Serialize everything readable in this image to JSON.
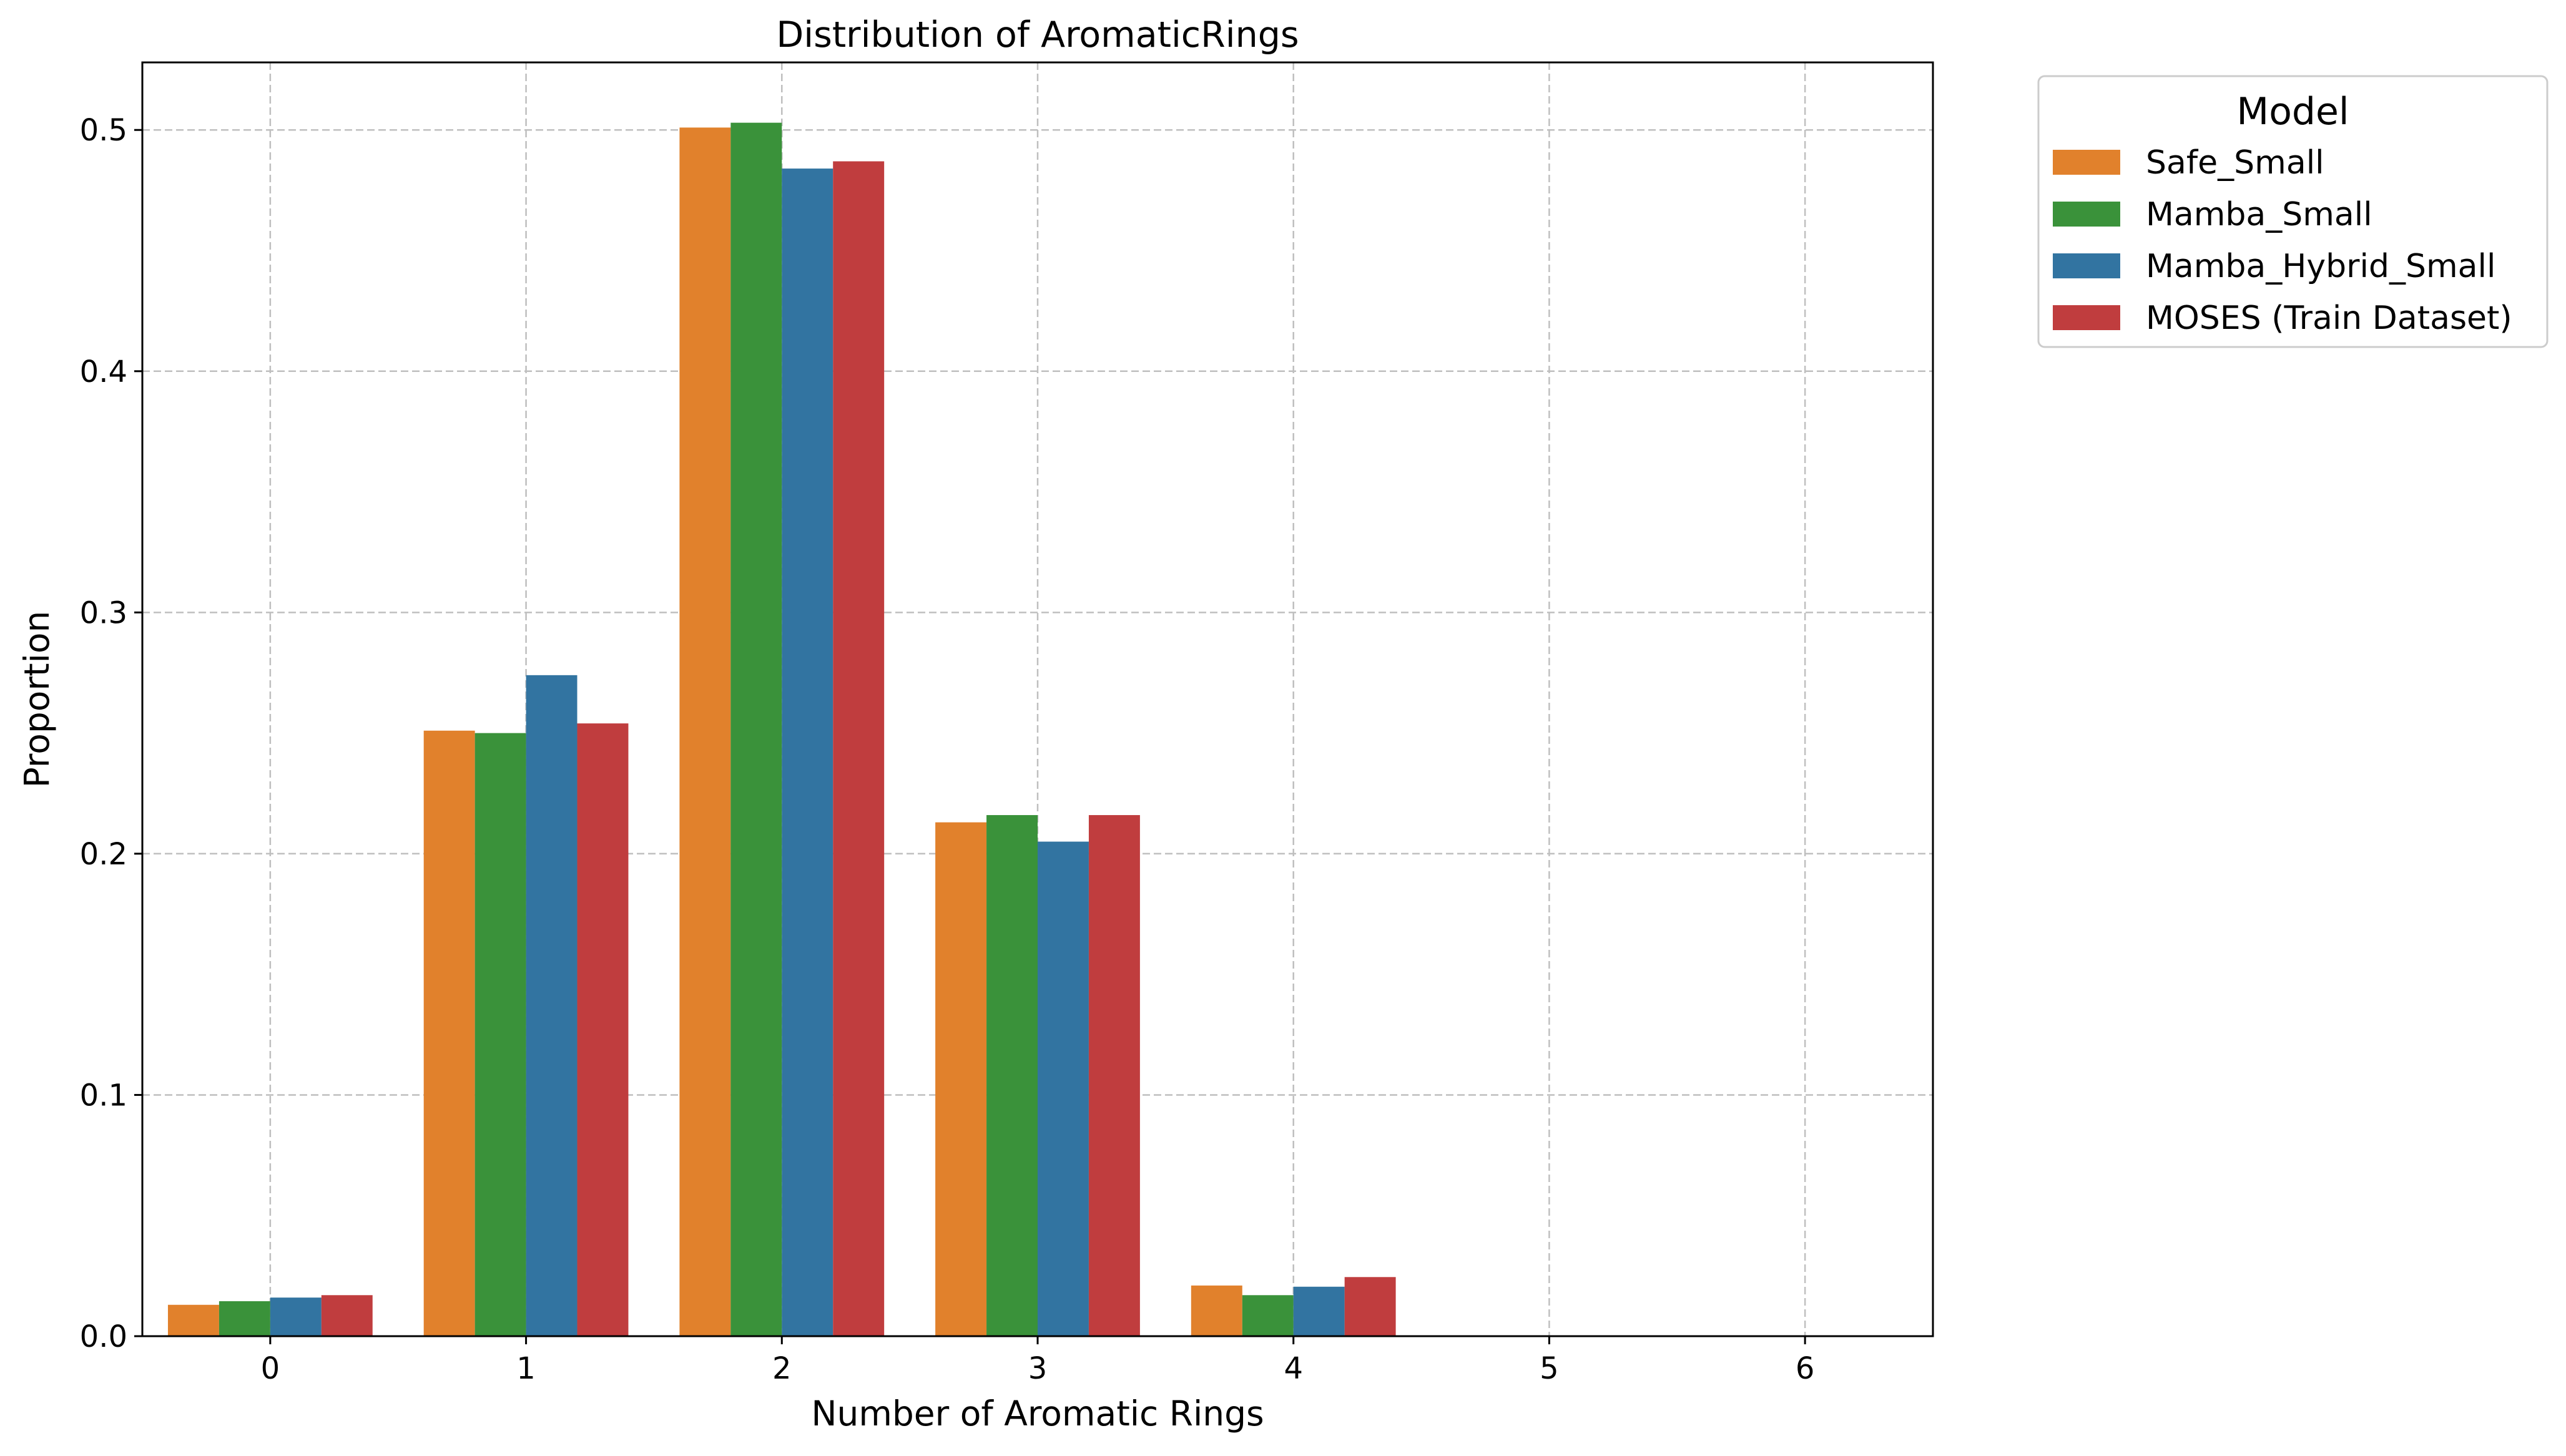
{
  "chart_data": {
    "type": "bar",
    "title": "Distribution of AromaticRings",
    "xlabel": "Number of Aromatic Rings",
    "ylabel": "Proportion",
    "categories": [
      "0",
      "1",
      "2",
      "3",
      "4",
      "5",
      "6"
    ],
    "ylim": [
      0,
      0.528
    ],
    "yticks": [
      0.0,
      0.1,
      0.2,
      0.3,
      0.4,
      0.5
    ],
    "ytick_labels": [
      "0.0",
      "0.1",
      "0.2",
      "0.3",
      "0.4",
      "0.5"
    ],
    "grid": true,
    "legend": {
      "title": "Model",
      "position": "outside-top-right"
    },
    "series": [
      {
        "name": "Safe_Small",
        "color": "#e1812c",
        "values": [
          0.013,
          0.251,
          0.501,
          0.213,
          0.021,
          0.0,
          0.0
        ]
      },
      {
        "name": "Mamba_Small",
        "color": "#3a923a",
        "values": [
          0.0145,
          0.25,
          0.503,
          0.216,
          0.017,
          0.0,
          0.0
        ]
      },
      {
        "name": "Mamba_Hybrid_Small",
        "color": "#3274a1",
        "values": [
          0.016,
          0.274,
          0.484,
          0.205,
          0.0205,
          0.0,
          0.0
        ]
      },
      {
        "name": "MOSES (Train Dataset)",
        "color": "#c03d3e",
        "values": [
          0.017,
          0.254,
          0.487,
          0.216,
          0.0245,
          0.0,
          0.0
        ]
      }
    ]
  }
}
